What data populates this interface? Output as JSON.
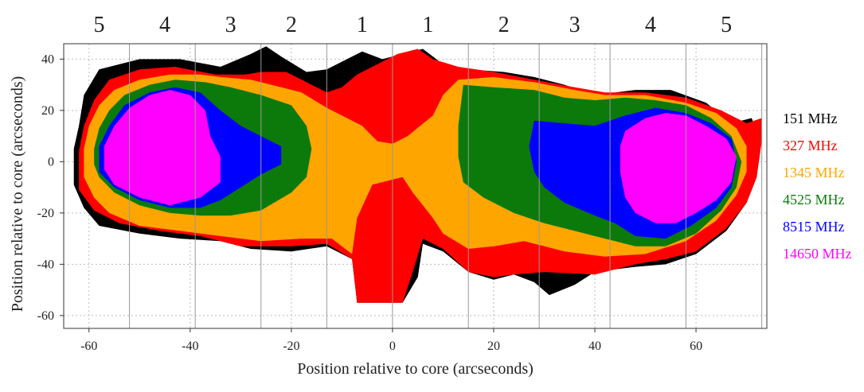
{
  "chart_data": {
    "type": "map",
    "xlabel": "Position relative to core (arcseconds)",
    "ylabel": "Position relative to core (arcseconds)",
    "xlim": [
      -65,
      74
    ],
    "ylim": [
      -65,
      46
    ],
    "xticks": [
      -60,
      -40,
      -20,
      0,
      20,
      40,
      60
    ],
    "yticks": [
      40,
      20,
      0,
      -20,
      -40,
      -60
    ],
    "grid": "dotted",
    "region_boundaries": [
      -52,
      -39,
      -26,
      -13,
      0,
      15,
      29,
      43,
      58,
      73
    ],
    "region_labels": [
      {
        "label": "5",
        "x": -58
      },
      {
        "label": "4",
        "x": -45
      },
      {
        "label": "3",
        "x": -32
      },
      {
        "label": "2",
        "x": -20
      },
      {
        "label": "1",
        "x": -6
      },
      {
        "label": "1",
        "x": 7
      },
      {
        "label": "2",
        "x": 22
      },
      {
        "label": "3",
        "x": 36
      },
      {
        "label": "4",
        "x": 51
      },
      {
        "label": "5",
        "x": 66
      }
    ],
    "series": [
      {
        "name": "151 MHz",
        "color": "#000000",
        "outline": [
          [
            -63,
            5
          ],
          [
            -62,
            14
          ],
          [
            -61,
            26
          ],
          [
            -58,
            36
          ],
          [
            -50,
            40
          ],
          [
            -42,
            40
          ],
          [
            -34,
            37
          ],
          [
            -28,
            42
          ],
          [
            -25,
            45
          ],
          [
            -22,
            41
          ],
          [
            -17,
            35
          ],
          [
            -13,
            36
          ],
          [
            -9,
            40
          ],
          [
            -6,
            43
          ],
          [
            -2,
            40
          ],
          [
            2,
            42
          ],
          [
            6,
            44
          ],
          [
            10,
            38
          ],
          [
            15,
            36
          ],
          [
            22,
            35
          ],
          [
            28,
            33
          ],
          [
            34,
            30
          ],
          [
            40,
            26
          ],
          [
            48,
            28
          ],
          [
            55,
            28
          ],
          [
            62,
            23
          ],
          [
            67,
            15
          ],
          [
            71,
            17
          ],
          [
            72,
            12
          ],
          [
            72,
            -6
          ],
          [
            70,
            -16
          ],
          [
            66,
            -27
          ],
          [
            60,
            -36
          ],
          [
            54,
            -40
          ],
          [
            48,
            -41
          ],
          [
            44,
            -42
          ],
          [
            40,
            -43
          ],
          [
            36,
            -48
          ],
          [
            31,
            -52
          ],
          [
            28,
            -47
          ],
          [
            24,
            -44
          ],
          [
            20,
            -46
          ],
          [
            15,
            -43
          ],
          [
            10,
            -35
          ],
          [
            6,
            -32
          ],
          [
            5,
            -45
          ],
          [
            2,
            -55
          ],
          [
            -7,
            -55
          ],
          [
            -8,
            -38
          ],
          [
            -13,
            -33
          ],
          [
            -20,
            -35
          ],
          [
            -28,
            -34
          ],
          [
            -34,
            -31
          ],
          [
            -42,
            -30
          ],
          [
            -50,
            -28
          ],
          [
            -58,
            -25
          ],
          [
            -61,
            -18
          ],
          [
            -63,
            -9
          ]
        ]
      },
      {
        "name": "327 MHz",
        "color": "#ff0000",
        "outline": [
          [
            -62,
            4
          ],
          [
            -61,
            14
          ],
          [
            -59,
            24
          ],
          [
            -56,
            32
          ],
          [
            -50,
            36
          ],
          [
            -43,
            37
          ],
          [
            -35,
            34
          ],
          [
            -29,
            34
          ],
          [
            -26,
            35
          ],
          [
            -21,
            35
          ],
          [
            -17,
            31
          ],
          [
            -13,
            27
          ],
          [
            -10,
            29
          ],
          [
            -7,
            34
          ],
          [
            -3,
            38
          ],
          [
            1,
            42
          ],
          [
            5,
            44
          ],
          [
            8,
            40
          ],
          [
            13,
            37
          ],
          [
            20,
            35
          ],
          [
            28,
            32
          ],
          [
            36,
            29
          ],
          [
            42,
            27
          ],
          [
            50,
            27
          ],
          [
            58,
            25
          ],
          [
            65,
            20
          ],
          [
            70,
            15
          ],
          [
            73,
            17
          ],
          [
            73,
            8
          ],
          [
            72,
            -6
          ],
          [
            70,
            -16
          ],
          [
            66,
            -26
          ],
          [
            60,
            -35
          ],
          [
            54,
            -38
          ],
          [
            48,
            -40
          ],
          [
            40,
            -44
          ],
          [
            30,
            -43
          ],
          [
            24,
            -44
          ],
          [
            20,
            -45
          ],
          [
            15,
            -43
          ],
          [
            10,
            -34
          ],
          [
            6,
            -30
          ],
          [
            4,
            -43
          ],
          [
            2,
            -55
          ],
          [
            -7,
            -55
          ],
          [
            -8,
            -38
          ],
          [
            -13,
            -32
          ],
          [
            -20,
            -33
          ],
          [
            -30,
            -33
          ],
          [
            -38,
            -29
          ],
          [
            -46,
            -27
          ],
          [
            -54,
            -24
          ],
          [
            -59,
            -19
          ],
          [
            -62,
            -11
          ]
        ]
      },
      {
        "name": "1345 MHz",
        "color": "#ffa500",
        "outline": [
          [
            -61,
            5
          ],
          [
            -60,
            14
          ],
          [
            -58,
            22
          ],
          [
            -55,
            28
          ],
          [
            -50,
            32
          ],
          [
            -44,
            34
          ],
          [
            -38,
            34
          ],
          [
            -34,
            33
          ],
          [
            -28,
            32
          ],
          [
            -22,
            29
          ],
          [
            -18,
            27
          ],
          [
            -13,
            21
          ],
          [
            -10,
            18
          ],
          [
            -6,
            14
          ],
          [
            -3,
            8
          ],
          [
            0,
            7
          ],
          [
            3,
            10
          ],
          [
            8,
            18
          ],
          [
            10,
            26
          ],
          [
            13,
            32
          ],
          [
            20,
            33
          ],
          [
            28,
            31
          ],
          [
            36,
            28
          ],
          [
            42,
            26
          ],
          [
            50,
            26
          ],
          [
            58,
            23
          ],
          [
            64,
            19
          ],
          [
            68,
            13
          ],
          [
            70,
            6
          ],
          [
            70,
            -4
          ],
          [
            68,
            -13
          ],
          [
            64,
            -23
          ],
          [
            58,
            -31
          ],
          [
            50,
            -36
          ],
          [
            42,
            -37
          ],
          [
            34,
            -35
          ],
          [
            26,
            -31
          ],
          [
            20,
            -33
          ],
          [
            15,
            -34
          ],
          [
            10,
            -28
          ],
          [
            8,
            -22
          ],
          [
            4,
            -12
          ],
          [
            2,
            -6
          ],
          [
            0,
            -7
          ],
          [
            -4,
            -9
          ],
          [
            -7,
            -22
          ],
          [
            -8,
            -36
          ],
          [
            -12,
            -30
          ],
          [
            -18,
            -30
          ],
          [
            -26,
            -31
          ],
          [
            -34,
            -29
          ],
          [
            -42,
            -27
          ],
          [
            -50,
            -25
          ],
          [
            -56,
            -20
          ],
          [
            -59,
            -14
          ],
          [
            -61,
            -6
          ]
        ]
      },
      {
        "name": "4525 MHz",
        "color": "#0b7a0b",
        "outline": [
          [
            -59,
            5
          ],
          [
            -58,
            13
          ],
          [
            -56,
            20
          ],
          [
            -53,
            26
          ],
          [
            -48,
            30
          ],
          [
            -43,
            32
          ],
          [
            -37,
            31
          ],
          [
            -32,
            29
          ],
          [
            -26,
            26
          ],
          [
            -20,
            22
          ],
          [
            -17,
            14
          ],
          [
            -16,
            5
          ],
          [
            -17,
            -6
          ],
          [
            -20,
            -12
          ],
          [
            -26,
            -19
          ],
          [
            -32,
            -21
          ],
          [
            -38,
            -21
          ],
          [
            -44,
            -20
          ],
          [
            -50,
            -17
          ],
          [
            -55,
            -12
          ],
          [
            -58,
            -6
          ],
          [
            -59,
            -1
          ]
        ]
      },
      {
        "name": "4525 MHz (east)",
        "color": "#0b7a0b",
        "outline": [
          [
            14,
            30
          ],
          [
            20,
            29
          ],
          [
            28,
            28
          ],
          [
            34,
            25
          ],
          [
            40,
            24
          ],
          [
            46,
            25
          ],
          [
            52,
            24
          ],
          [
            58,
            22
          ],
          [
            63,
            17
          ],
          [
            67,
            10
          ],
          [
            69,
            0
          ],
          [
            68,
            -10
          ],
          [
            65,
            -19
          ],
          [
            60,
            -28
          ],
          [
            54,
            -33
          ],
          [
            48,
            -33
          ],
          [
            42,
            -30
          ],
          [
            36,
            -27
          ],
          [
            30,
            -24
          ],
          [
            24,
            -20
          ],
          [
            18,
            -14
          ],
          [
            14,
            -8
          ],
          [
            13,
            2
          ],
          [
            13,
            14
          ]
        ]
      },
      {
        "name": "8515 MHz",
        "color": "#0000ff",
        "outline": [
          [
            -58,
            6
          ],
          [
            -56,
            14
          ],
          [
            -53,
            22
          ],
          [
            -48,
            27
          ],
          [
            -43,
            29
          ],
          [
            -38,
            27
          ],
          [
            -34,
            20
          ],
          [
            -30,
            14
          ],
          [
            -26,
            10
          ],
          [
            -22,
            6
          ],
          [
            -22,
            -1
          ],
          [
            -26,
            -5
          ],
          [
            -30,
            -10
          ],
          [
            -34,
            -15
          ],
          [
            -38,
            -18
          ],
          [
            -44,
            -18
          ],
          [
            -50,
            -15
          ],
          [
            -55,
            -10
          ],
          [
            -58,
            -4
          ]
        ]
      },
      {
        "name": "8515 MHz (east)",
        "color": "#0000ff",
        "outline": [
          [
            28,
            16
          ],
          [
            34,
            15
          ],
          [
            40,
            14
          ],
          [
            46,
            18
          ],
          [
            52,
            21
          ],
          [
            58,
            19
          ],
          [
            63,
            15
          ],
          [
            67,
            9
          ],
          [
            68,
            0
          ],
          [
            67,
            -10
          ],
          [
            64,
            -18
          ],
          [
            59,
            -25
          ],
          [
            54,
            -30
          ],
          [
            48,
            -29
          ],
          [
            44,
            -24
          ],
          [
            40,
            -21
          ],
          [
            34,
            -16
          ],
          [
            30,
            -10
          ],
          [
            28,
            -4
          ],
          [
            27,
            6
          ]
        ]
      },
      {
        "name": "14650 MHz",
        "color": "#ff00ff",
        "outline": [
          [
            -57,
            6
          ],
          [
            -55,
            14
          ],
          [
            -52,
            21
          ],
          [
            -48,
            26
          ],
          [
            -44,
            28
          ],
          [
            -40,
            26
          ],
          [
            -37,
            20
          ],
          [
            -36,
            10
          ],
          [
            -34,
            2
          ],
          [
            -34,
            -8
          ],
          [
            -38,
            -14
          ],
          [
            -44,
            -17
          ],
          [
            -50,
            -14
          ],
          [
            -55,
            -9
          ],
          [
            -57,
            -3
          ]
        ]
      },
      {
        "name": "14650 MHz (east)",
        "color": "#ff00ff",
        "outline": [
          [
            46,
            12
          ],
          [
            50,
            17
          ],
          [
            54,
            19
          ],
          [
            58,
            18
          ],
          [
            62,
            14
          ],
          [
            66,
            9
          ],
          [
            68,
            2
          ],
          [
            67,
            -8
          ],
          [
            64,
            -15
          ],
          [
            60,
            -20
          ],
          [
            56,
            -24
          ],
          [
            52,
            -24
          ],
          [
            48,
            -20
          ],
          [
            46,
            -14
          ],
          [
            45,
            -4
          ],
          [
            45,
            6
          ]
        ]
      }
    ],
    "legend": {
      "placement": "right",
      "entries": [
        {
          "label": "151 MHz",
          "color": "#000000"
        },
        {
          "label": "327 MHz",
          "color": "#ff0000"
        },
        {
          "label": "1345 MHz",
          "color": "#ffa500"
        },
        {
          "label": "4525 MHz",
          "color": "#0b7a0b"
        },
        {
          "label": "8515 MHz",
          "color": "#0000ff"
        },
        {
          "label": "14650 MHz",
          "color": "#ff00ff"
        }
      ]
    }
  }
}
